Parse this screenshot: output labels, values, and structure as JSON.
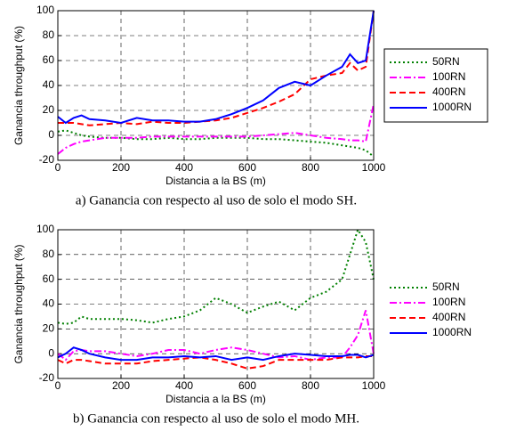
{
  "chart_data": [
    {
      "type": "line",
      "xlabel": "Distancia a la BS (m)",
      "ylabel": "Ganancia throughput (%)",
      "caption": "a) Ganancia con respecto al uso de solo el modo SH.",
      "x": [
        0,
        25,
        50,
        75,
        100,
        150,
        200,
        250,
        300,
        350,
        400,
        450,
        500,
        550,
        600,
        650,
        700,
        750,
        800,
        850,
        900,
        925,
        950,
        975,
        1000
      ],
      "xlim": [
        0,
        1000
      ],
      "xticks": [
        0,
        200,
        400,
        600,
        800,
        1000
      ],
      "ylim": [
        -20,
        100
      ],
      "yticks": [
        -20,
        0,
        20,
        40,
        60,
        80,
        100
      ],
      "grid": true,
      "legend_frame": true,
      "series": [
        {
          "name": "50RN",
          "color": "#008000",
          "style": "dotted",
          "values": [
            3,
            4,
            2,
            0,
            -1,
            -2,
            -2,
            -3,
            -3,
            -2,
            -3,
            -3,
            -2,
            -2,
            -2,
            -3,
            -3,
            -4,
            -5,
            -6,
            -8,
            -9,
            -10,
            -12,
            -17
          ]
        },
        {
          "name": "100RN",
          "color": "#ff00ff",
          "style": "dashdot",
          "values": [
            -15,
            -10,
            -7,
            -5,
            -4,
            -2,
            -2,
            -2,
            -1,
            -1,
            -1,
            -1,
            -1,
            -1,
            -1,
            0,
            1,
            2,
            0,
            -2,
            -3,
            -4,
            -4,
            -5,
            25
          ]
        },
        {
          "name": "400RN",
          "color": "#ff0000",
          "style": "dashed",
          "values": [
            10,
            10,
            10,
            9,
            8,
            9,
            10,
            9,
            11,
            10,
            10,
            11,
            12,
            14,
            18,
            22,
            27,
            33,
            45,
            48,
            50,
            58,
            52,
            55,
            100
          ]
        },
        {
          "name": "1000RN",
          "color": "#0000ff",
          "style": "solid",
          "values": [
            15,
            10,
            14,
            16,
            13,
            12,
            10,
            14,
            12,
            12,
            11,
            11,
            13,
            17,
            22,
            28,
            38,
            43,
            40,
            48,
            55,
            65,
            58,
            60,
            100
          ]
        }
      ]
    },
    {
      "type": "line",
      "xlabel": "Distancia a la BS (m)",
      "ylabel": "Ganancia throughput (%)",
      "caption": "b) Ganancia con respecto al uso de solo el modo MH.",
      "x": [
        0,
        25,
        50,
        75,
        100,
        150,
        200,
        250,
        300,
        350,
        400,
        450,
        500,
        550,
        600,
        650,
        700,
        750,
        800,
        850,
        900,
        925,
        950,
        975,
        1000
      ],
      "xlim": [
        0,
        1000
      ],
      "xticks": [
        0,
        200,
        400,
        600,
        800,
        1000
      ],
      "ylim": [
        -20,
        100
      ],
      "yticks": [
        -20,
        0,
        20,
        40,
        60,
        80,
        100
      ],
      "grid": true,
      "legend_frame": false,
      "series": [
        {
          "name": "50RN",
          "color": "#008000",
          "style": "dotted",
          "values": [
            25,
            24,
            25,
            30,
            28,
            28,
            28,
            27,
            25,
            28,
            30,
            35,
            45,
            40,
            33,
            38,
            42,
            35,
            45,
            50,
            60,
            80,
            100,
            90,
            60
          ]
        },
        {
          "name": "100RN",
          "color": "#ff00ff",
          "style": "dashdot",
          "values": [
            0,
            -5,
            2,
            3,
            2,
            2,
            0,
            -2,
            0,
            3,
            3,
            0,
            3,
            5,
            3,
            0,
            -3,
            -2,
            -5,
            -3,
            -3,
            5,
            15,
            35,
            0
          ]
        },
        {
          "name": "400RN",
          "color": "#ff0000",
          "style": "dashed",
          "values": [
            -5,
            -8,
            -5,
            -5,
            -6,
            -8,
            -8,
            -8,
            -6,
            -5,
            -4,
            -3,
            -5,
            -8,
            -12,
            -10,
            -5,
            -5,
            -5,
            -5,
            -3,
            -3,
            -3,
            -2,
            -2
          ]
        },
        {
          "name": "1000RN",
          "color": "#0000ff",
          "style": "solid",
          "values": [
            -3,
            0,
            5,
            3,
            0,
            -3,
            -5,
            -5,
            -3,
            -3,
            -2,
            -3,
            -2,
            -5,
            -3,
            -5,
            -2,
            0,
            -1,
            -2,
            -2,
            -1,
            -1,
            -3,
            -1
          ]
        }
      ]
    }
  ]
}
